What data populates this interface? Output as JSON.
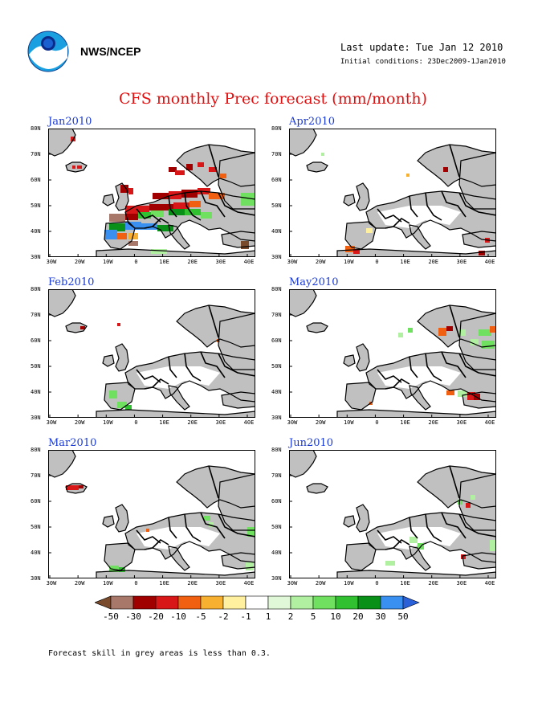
{
  "header": {
    "org": "NWS/NCEP",
    "last_update": "Last update: Tue Jan 12 2010",
    "initial_conditions": "Initial conditions: 23Dec2009-1Jan2010",
    "title": "CFS monthly Prec forecast (mm/month)"
  },
  "axes": {
    "lat_labels": [
      "80N",
      "70N",
      "60N",
      "50N",
      "40N",
      "30N"
    ],
    "lon_labels": [
      "30W",
      "20W",
      "10W",
      "0",
      "10E",
      "20E",
      "30E",
      "40E"
    ]
  },
  "panels": [
    {
      "label": "Jan2010"
    },
    {
      "label": "Apr2010"
    },
    {
      "label": "Feb2010"
    },
    {
      "label": "May2010"
    },
    {
      "label": "Mar2010"
    },
    {
      "label": "Jun2010"
    }
  ],
  "colorbar": {
    "labels": [
      "-50",
      "-30",
      "-20",
      "-10",
      "-5",
      "-2",
      "-1",
      "1",
      "2",
      "5",
      "10",
      "20",
      "30",
      "50"
    ],
    "colors": [
      "#7a4a2c",
      "#a8786a",
      "#a00000",
      "#d81818",
      "#f06010",
      "#f8b030",
      "#fff0a0",
      "#ffffff",
      "#e0f8d8",
      "#b0f0a0",
      "#70e060",
      "#30c030",
      "#089018",
      "#3a90f0",
      "#2a60d8"
    ]
  },
  "note": "Forecast skill in grey areas is less than 0.3."
}
